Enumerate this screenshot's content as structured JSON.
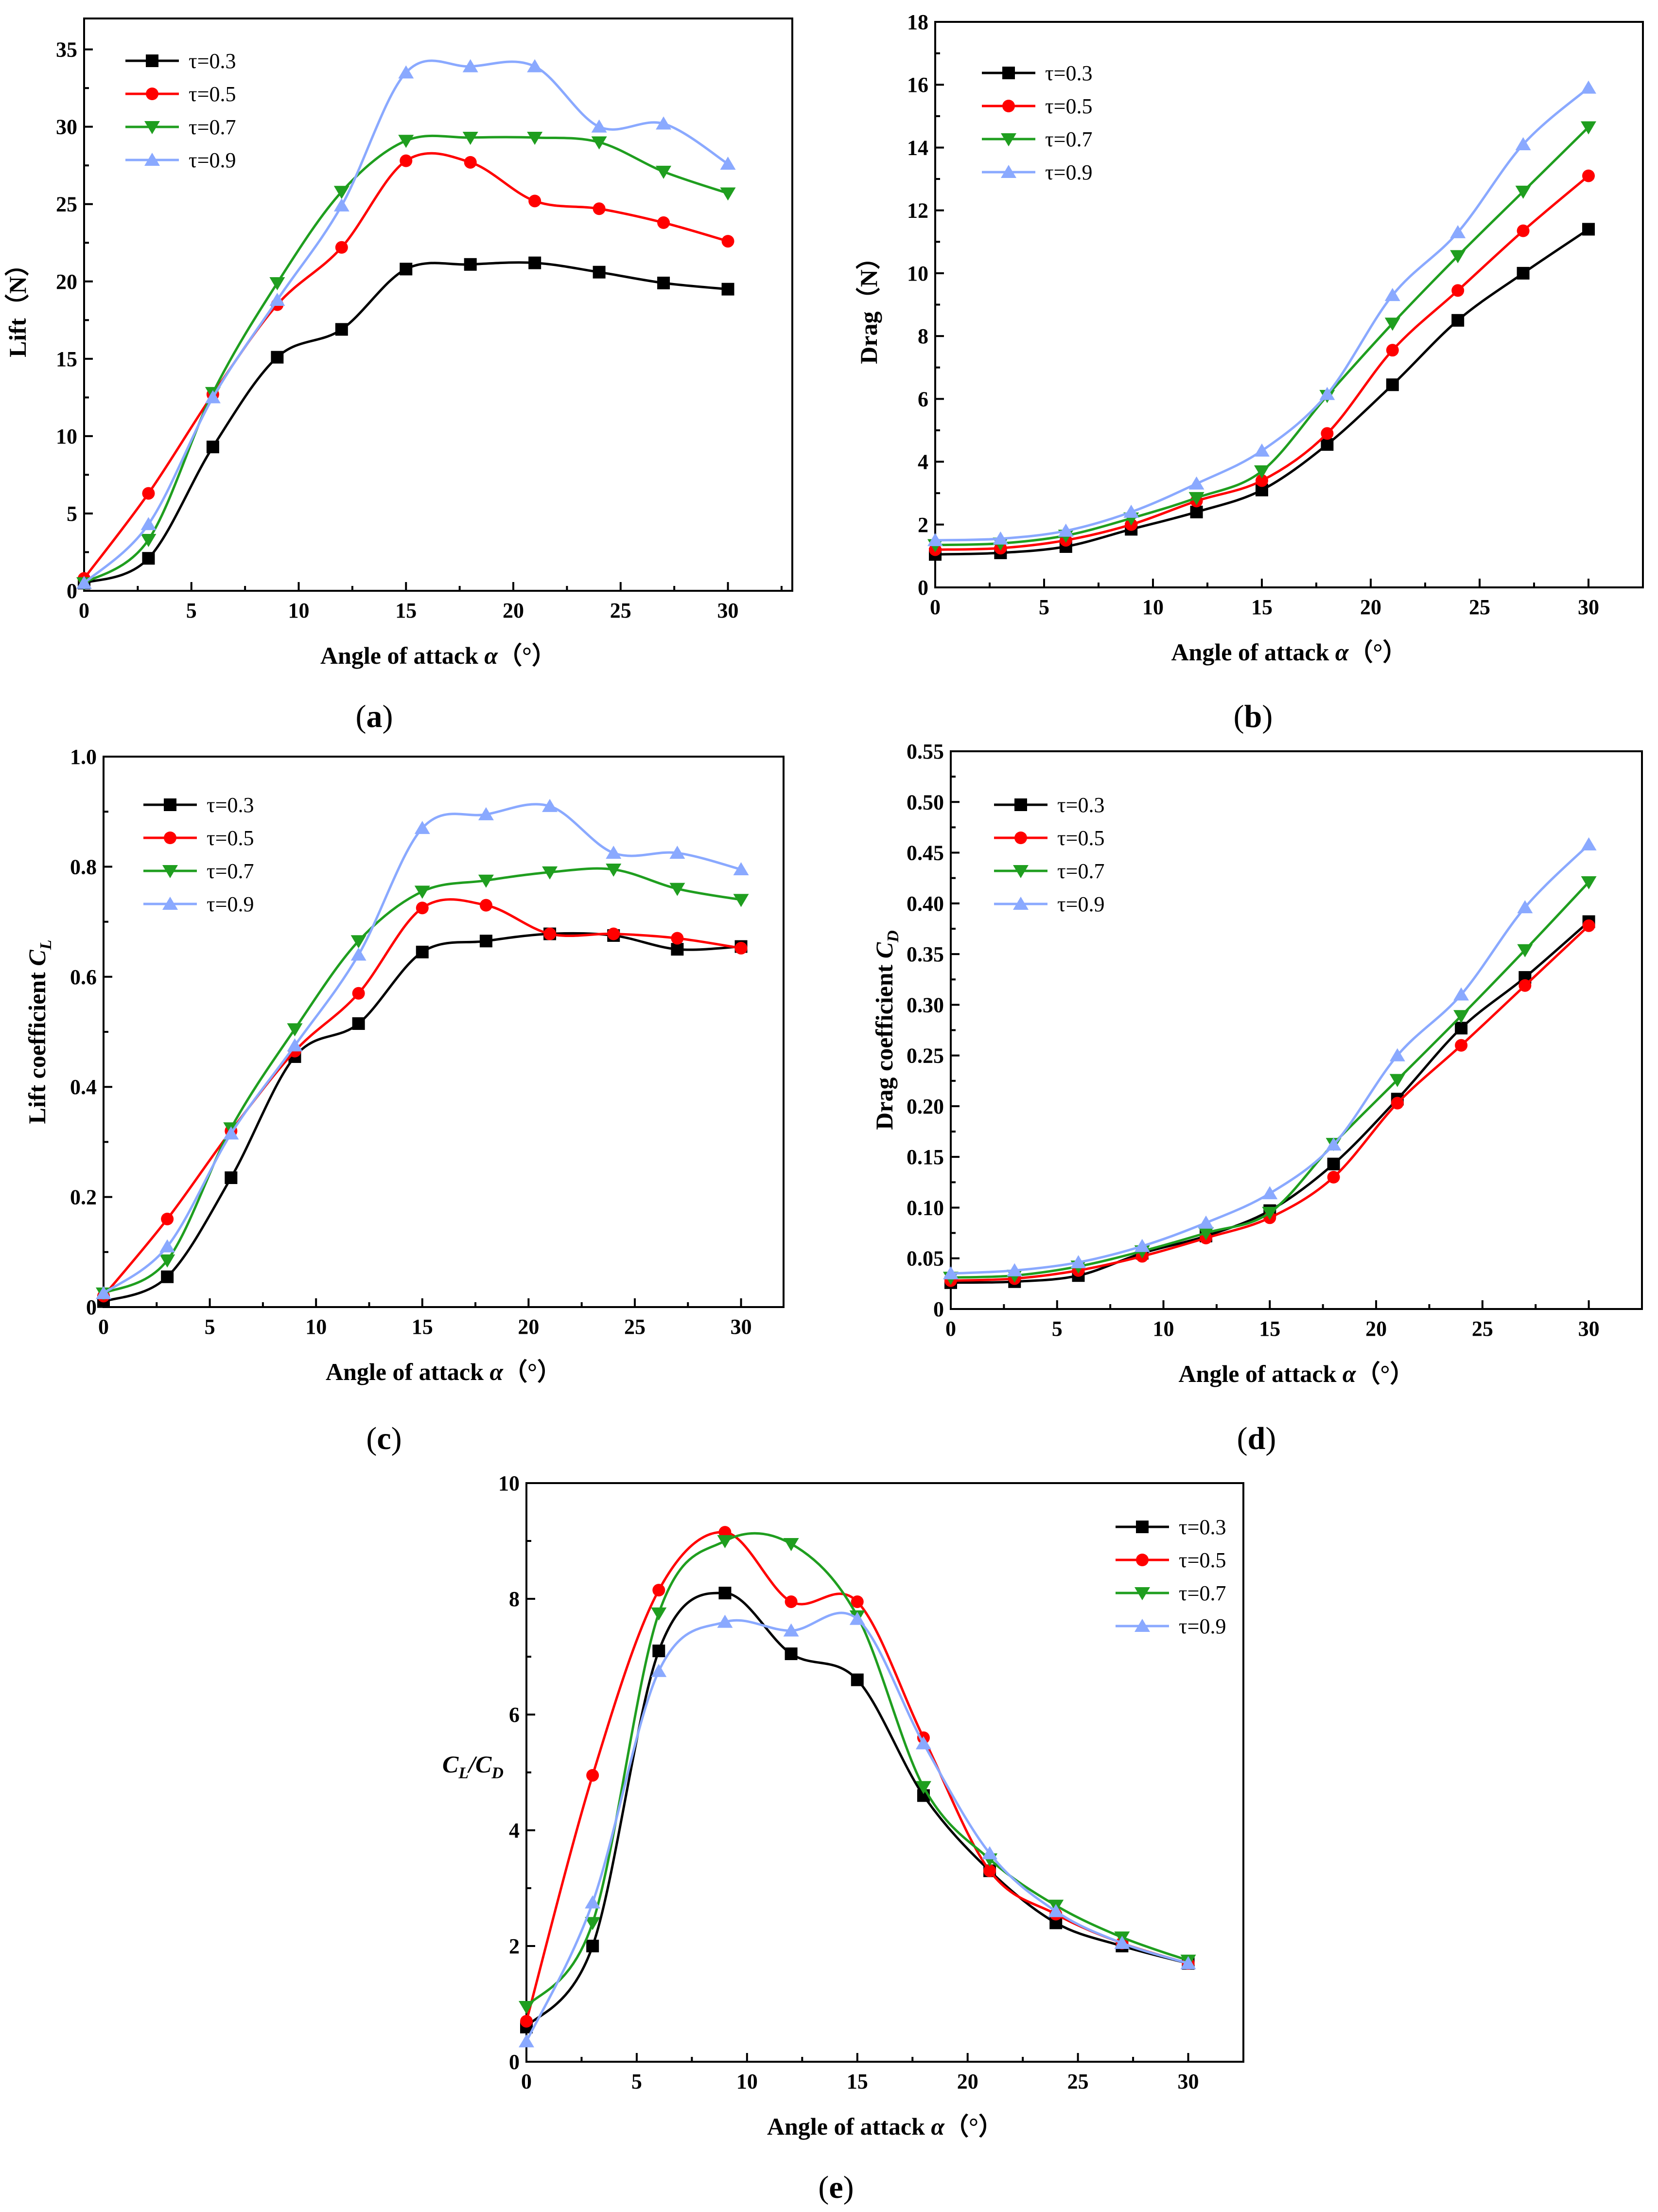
{
  "figure": {
    "colors": {
      "tau03": "#000000",
      "tau05": "#ff0000",
      "tau07": "#1f9e1f",
      "tau09": "#8aa9ff"
    }
  },
  "chart_data": [
    {
      "type": "line",
      "panel": "(a)",
      "xlabel": "Angle of attack α（°）",
      "ylabel": "Lift（N）",
      "xlim": [
        0,
        33
      ],
      "ylim": [
        0,
        37
      ],
      "xticks": [
        0,
        5,
        10,
        15,
        20,
        25,
        30
      ],
      "yticks": [
        0,
        5,
        10,
        15,
        20,
        25,
        30,
        35
      ],
      "ytick_labels": [
        "0",
        "5",
        "10",
        "15",
        "20",
        "25",
        "30",
        "35"
      ],
      "legend_position": "top-left",
      "x": [
        0,
        3,
        6,
        9,
        12,
        15,
        18,
        21,
        24,
        27,
        30
      ],
      "series": [
        {
          "name": "τ=0.3",
          "marker": "square",
          "values": [
            0.5,
            2.1,
            9.3,
            15.1,
            16.9,
            20.8,
            21.1,
            21.2,
            20.6,
            19.9,
            19.5
          ]
        },
        {
          "name": "τ=0.5",
          "marker": "circle",
          "values": [
            0.8,
            6.3,
            12.7,
            18.5,
            22.2,
            27.8,
            27.7,
            25.2,
            24.7,
            23.8,
            22.6
          ]
        },
        {
          "name": "τ=0.7",
          "marker": "triangle-down",
          "values": [
            0.5,
            3.3,
            12.8,
            19.9,
            25.8,
            29.1,
            29.3,
            29.3,
            29.0,
            27.1,
            25.7
          ]
        },
        {
          "name": "τ=0.9",
          "marker": "triangle-up",
          "values": [
            0.5,
            4.3,
            12.5,
            18.8,
            24.9,
            33.5,
            33.9,
            33.9,
            30.0,
            30.2,
            27.6
          ]
        }
      ]
    },
    {
      "type": "line",
      "panel": "(b)",
      "xlabel": "Angle of attack α（°）",
      "ylabel": "Drag（N）",
      "xlim": [
        0,
        32.5
      ],
      "ylim": [
        0,
        18
      ],
      "xticks": [
        0,
        5,
        10,
        15,
        20,
        25,
        30
      ],
      "yticks": [
        0,
        2,
        4,
        6,
        8,
        10,
        12,
        14,
        16,
        18
      ],
      "ytick_labels": [
        "0",
        "2",
        "4",
        "6",
        "8",
        "10",
        "12",
        "14",
        "16",
        "18"
      ],
      "legend_position": "top-left",
      "x": [
        0,
        3,
        6,
        9,
        12,
        15,
        18,
        21,
        24,
        27,
        30
      ],
      "series": [
        {
          "name": "τ=0.3",
          "marker": "square",
          "values": [
            1.05,
            1.1,
            1.3,
            1.85,
            2.4,
            3.1,
            4.55,
            6.45,
            8.5,
            10.0,
            11.4
          ]
        },
        {
          "name": "τ=0.5",
          "marker": "circle",
          "values": [
            1.2,
            1.25,
            1.5,
            2.0,
            2.75,
            3.4,
            4.9,
            7.55,
            9.45,
            11.35,
            13.1
          ]
        },
        {
          "name": "τ=0.7",
          "marker": "triangle-down",
          "values": [
            1.35,
            1.4,
            1.65,
            2.2,
            2.85,
            3.7,
            6.1,
            8.4,
            10.55,
            12.6,
            14.65
          ]
        },
        {
          "name": "τ=0.9",
          "marker": "triangle-up",
          "values": [
            1.5,
            1.55,
            1.8,
            2.4,
            3.3,
            4.35,
            6.15,
            9.3,
            11.3,
            14.1,
            15.9
          ]
        }
      ]
    },
    {
      "type": "line",
      "panel": "(c)",
      "xlabel": "Angle of attack α（°）",
      "ylabel": "Lift coefficient C",
      "ylabel_sub": "L",
      "xlim": [
        0,
        32
      ],
      "ylim": [
        0,
        1.0
      ],
      "xticks": [
        0,
        5,
        10,
        15,
        20,
        25,
        30
      ],
      "yticks": [
        0,
        0.2,
        0.4,
        0.6,
        0.8,
        1.0
      ],
      "ytick_labels": [
        "0",
        "0.2",
        "0.4",
        "0.6",
        "0.8",
        "1.0"
      ],
      "legend_position": "top-left",
      "x": [
        0,
        3,
        6,
        9,
        12,
        15,
        18,
        21,
        24,
        27,
        30
      ],
      "series": [
        {
          "name": "τ=0.3",
          "marker": "square",
          "values": [
            0.01,
            0.055,
            0.235,
            0.455,
            0.515,
            0.645,
            0.665,
            0.678,
            0.675,
            0.65,
            0.655
          ]
        },
        {
          "name": "τ=0.5",
          "marker": "circle",
          "values": [
            0.02,
            0.16,
            0.32,
            0.465,
            0.57,
            0.725,
            0.73,
            0.678,
            0.678,
            0.67,
            0.652
          ]
        },
        {
          "name": "τ=0.7",
          "marker": "triangle-down",
          "values": [
            0.025,
            0.085,
            0.325,
            0.505,
            0.665,
            0.755,
            0.775,
            0.79,
            0.795,
            0.76,
            0.74
          ]
        },
        {
          "name": "τ=0.9",
          "marker": "triangle-up",
          "values": [
            0.025,
            0.11,
            0.315,
            0.475,
            0.64,
            0.87,
            0.895,
            0.91,
            0.825,
            0.825,
            0.795
          ]
        }
      ]
    },
    {
      "type": "line",
      "panel": "(d)",
      "xlabel": "Angle of attack α（°）",
      "ylabel": "Drag coefficient C",
      "ylabel_sub": "D",
      "xlim": [
        0,
        32.5
      ],
      "ylim": [
        0,
        0.55
      ],
      "xticks": [
        0,
        5,
        10,
        15,
        20,
        25,
        30
      ],
      "yticks": [
        0,
        0.05,
        0.1,
        0.15,
        0.2,
        0.25,
        0.3,
        0.35,
        0.4,
        0.45,
        0.5,
        0.55
      ],
      "ytick_labels": [
        "0",
        "0.05",
        "0.10",
        "0.15",
        "0.20",
        "0.25",
        "0.30",
        "0.35",
        "0.40",
        "0.45",
        "0.50",
        "0.55"
      ],
      "legend_position": "top-left",
      "x": [
        0,
        3,
        6,
        9,
        12,
        15,
        18,
        21,
        24,
        27,
        30
      ],
      "series": [
        {
          "name": "τ=0.3",
          "marker": "square",
          "values": [
            0.026,
            0.027,
            0.033,
            0.055,
            0.072,
            0.097,
            0.143,
            0.207,
            0.277,
            0.327,
            0.382
          ]
        },
        {
          "name": "τ=0.5",
          "marker": "circle",
          "values": [
            0.028,
            0.03,
            0.038,
            0.052,
            0.07,
            0.09,
            0.13,
            0.203,
            0.26,
            0.319,
            0.378
          ]
        },
        {
          "name": "τ=0.7",
          "marker": "triangle-down",
          "values": [
            0.031,
            0.033,
            0.042,
            0.057,
            0.075,
            0.095,
            0.163,
            0.226,
            0.289,
            0.354,
            0.421
          ]
        },
        {
          "name": "τ=0.9",
          "marker": "triangle-up",
          "values": [
            0.035,
            0.038,
            0.046,
            0.062,
            0.085,
            0.114,
            0.162,
            0.25,
            0.31,
            0.396,
            0.458
          ]
        }
      ]
    },
    {
      "type": "line",
      "panel": "(e)",
      "xlabel": "Angle of attack α（°）",
      "ylabel": "C_L/C_D",
      "xlim": [
        0,
        32.5
      ],
      "ylim": [
        0,
        10
      ],
      "xticks": [
        0,
        5,
        10,
        15,
        20,
        25,
        30
      ],
      "yticks": [
        0,
        2,
        4,
        6,
        8,
        10
      ],
      "ytick_labels": [
        "0",
        "2",
        "4",
        "6",
        "8",
        "10"
      ],
      "legend_position": "top-right",
      "x": [
        0,
        3,
        6,
        9,
        12,
        15,
        18,
        21,
        24,
        27,
        30
      ],
      "series": [
        {
          "name": "τ=0.3",
          "marker": "square",
          "values": [
            0.6,
            2.0,
            7.1,
            8.1,
            7.05,
            6.6,
            4.6,
            3.3,
            2.4,
            2.0,
            1.7
          ]
        },
        {
          "name": "τ=0.5",
          "marker": "circle",
          "values": [
            0.7,
            4.95,
            8.15,
            9.15,
            7.95,
            7.95,
            5.6,
            3.3,
            2.55,
            2.05,
            1.7
          ]
        },
        {
          "name": "τ=0.7",
          "marker": "triangle-down",
          "values": [
            0.95,
            2.4,
            7.75,
            9.0,
            8.95,
            7.7,
            4.75,
            3.5,
            2.7,
            2.15,
            1.75
          ]
        },
        {
          "name": "τ=0.9",
          "marker": "triangle-up",
          "values": [
            0.35,
            2.75,
            6.75,
            7.6,
            7.45,
            7.65,
            5.5,
            3.6,
            2.6,
            2.05,
            1.7
          ]
        }
      ]
    }
  ]
}
